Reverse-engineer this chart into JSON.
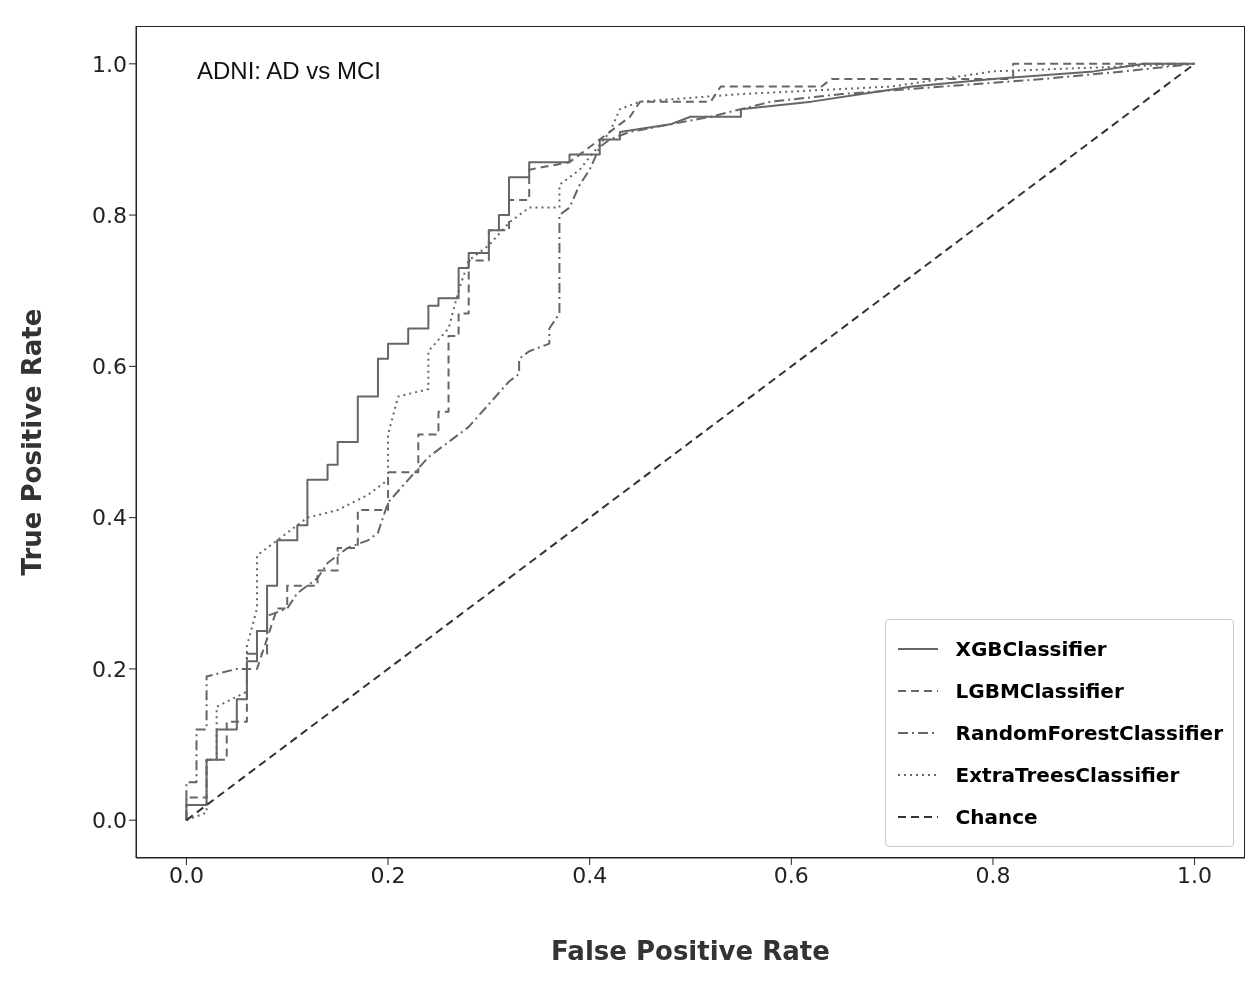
{
  "chart_data": {
    "type": "line",
    "xlabel": "False Positive Rate",
    "ylabel": "True Positive Rate",
    "annotations": [
      "ADNI: AD vs MCI"
    ],
    "xlim": [
      -0.05,
      1.05
    ],
    "ylim": [
      -0.05,
      1.05
    ],
    "xticks": [
      {
        "value": 0,
        "label": "0.0"
      },
      {
        "value": 0.2,
        "label": "0.2"
      },
      {
        "value": 0.4,
        "label": "0.4"
      },
      {
        "value": 0.6,
        "label": "0.6"
      },
      {
        "value": 0.8,
        "label": "0.8"
      },
      {
        "value": 1,
        "label": "1.0"
      }
    ],
    "yticks": [
      {
        "value": 0,
        "label": "0.0"
      },
      {
        "value": 0.2,
        "label": "0.2"
      },
      {
        "value": 0.4,
        "label": "0.4"
      },
      {
        "value": 0.6,
        "label": "0.6"
      },
      {
        "value": 0.8,
        "label": "0.8"
      },
      {
        "value": 1,
        "label": "1.0"
      }
    ],
    "grid": false,
    "legend": "bottom right",
    "marker": "none",
    "series": [
      {
        "name": "XGBClassifier",
        "color": "#666666",
        "line_style": "solid",
        "x": [
          0,
          0,
          0.02,
          0.02,
          0.03,
          0.03,
          0.05,
          0.05,
          0.06,
          0.06,
          0.07,
          0.07,
          0.08,
          0.08,
          0.09,
          0.09,
          0.11,
          0.11,
          0.12,
          0.12,
          0.14,
          0.14,
          0.15,
          0.15,
          0.17,
          0.17,
          0.19,
          0.19,
          0.2,
          0.2,
          0.22,
          0.22,
          0.24,
          0.24,
          0.25,
          0.25,
          0.27,
          0.27,
          0.28,
          0.28,
          0.3,
          0.3,
          0.31,
          0.31,
          0.32,
          0.32,
          0.34,
          0.34,
          0.38,
          0.38,
          0.41,
          0.41,
          0.43,
          0.43,
          0.48,
          0.5,
          0.55,
          0.55,
          0.62,
          0.67,
          0.72,
          0.8,
          0.9,
          0.95,
          1
        ],
        "values": [
          0,
          0.02,
          0.02,
          0.08,
          0.08,
          0.12,
          0.12,
          0.16,
          0.16,
          0.21,
          0.21,
          0.25,
          0.25,
          0.31,
          0.31,
          0.37,
          0.37,
          0.39,
          0.39,
          0.45,
          0.45,
          0.47,
          0.47,
          0.5,
          0.5,
          0.56,
          0.56,
          0.61,
          0.61,
          0.63,
          0.63,
          0.65,
          0.65,
          0.68,
          0.68,
          0.69,
          0.69,
          0.73,
          0.73,
          0.75,
          0.75,
          0.78,
          0.78,
          0.8,
          0.8,
          0.85,
          0.85,
          0.87,
          0.87,
          0.88,
          0.88,
          0.9,
          0.9,
          0.91,
          0.92,
          0.93,
          0.93,
          0.94,
          0.95,
          0.96,
          0.97,
          0.98,
          0.99,
          1,
          1
        ]
      },
      {
        "name": "LGBMClassifier",
        "color": "#666666",
        "line_style": "dashed",
        "x": [
          0,
          0,
          0.02,
          0.02,
          0.04,
          0.04,
          0.06,
          0.06,
          0.07,
          0.08,
          0.09,
          0.1,
          0.1,
          0.13,
          0.13,
          0.15,
          0.15,
          0.17,
          0.17,
          0.2,
          0.2,
          0.23,
          0.23,
          0.25,
          0.25,
          0.26,
          0.26,
          0.27,
          0.27,
          0.28,
          0.28,
          0.3,
          0.3,
          0.32,
          0.32,
          0.34,
          0.34,
          0.38,
          0.4,
          0.42,
          0.44,
          0.45,
          0.52,
          0.53,
          0.63,
          0.64,
          0.82,
          0.82,
          1
        ],
        "values": [
          0,
          0.03,
          0.03,
          0.08,
          0.08,
          0.13,
          0.13,
          0.2,
          0.2,
          0.24,
          0.28,
          0.28,
          0.31,
          0.31,
          0.33,
          0.33,
          0.36,
          0.36,
          0.41,
          0.41,
          0.46,
          0.46,
          0.51,
          0.51,
          0.54,
          0.54,
          0.64,
          0.64,
          0.67,
          0.67,
          0.74,
          0.74,
          0.78,
          0.78,
          0.82,
          0.82,
          0.86,
          0.87,
          0.89,
          0.91,
          0.93,
          0.95,
          0.95,
          0.97,
          0.97,
          0.98,
          0.98,
          1,
          1
        ]
      },
      {
        "name": "RandomForestClassifier",
        "color": "#666666",
        "line_style": "dashdot",
        "x": [
          0,
          0,
          0.01,
          0.01,
          0.02,
          0.02,
          0.05,
          0.06,
          0.06,
          0.08,
          0.08,
          0.1,
          0.11,
          0.13,
          0.14,
          0.16,
          0.18,
          0.19,
          0.2,
          0.22,
          0.24,
          0.26,
          0.28,
          0.3,
          0.32,
          0.33,
          0.33,
          0.34,
          0.36,
          0.36,
          0.37,
          0.37,
          0.38,
          0.39,
          0.4,
          0.41,
          0.42,
          0.44,
          0.52,
          0.58,
          0.65,
          0.75,
          0.85,
          0.93,
          1
        ],
        "values": [
          0,
          0.05,
          0.05,
          0.12,
          0.12,
          0.19,
          0.2,
          0.2,
          0.22,
          0.22,
          0.27,
          0.28,
          0.3,
          0.32,
          0.34,
          0.36,
          0.37,
          0.38,
          0.42,
          0.45,
          0.48,
          0.5,
          0.52,
          0.55,
          0.58,
          0.59,
          0.61,
          0.62,
          0.63,
          0.65,
          0.67,
          0.8,
          0.81,
          0.84,
          0.86,
          0.89,
          0.9,
          0.91,
          0.93,
          0.95,
          0.96,
          0.97,
          0.98,
          0.99,
          1
        ]
      },
      {
        "name": "ExtraTreesClassifier",
        "color": "#666666",
        "line_style": "dotted",
        "x": [
          0,
          0.02,
          0.02,
          0.03,
          0.03,
          0.06,
          0.06,
          0.07,
          0.07,
          0.09,
          0.12,
          0.15,
          0.18,
          0.2,
          0.2,
          0.21,
          0.24,
          0.24,
          0.26,
          0.27,
          0.28,
          0.3,
          0.32,
          0.34,
          0.37,
          0.37,
          0.39,
          0.42,
          0.43,
          0.45,
          0.55,
          0.7,
          0.8,
          1
        ],
        "values": [
          0,
          0.01,
          0.08,
          0.08,
          0.15,
          0.17,
          0.23,
          0.28,
          0.35,
          0.37,
          0.4,
          0.41,
          0.43,
          0.45,
          0.51,
          0.56,
          0.57,
          0.62,
          0.65,
          0.7,
          0.74,
          0.76,
          0.79,
          0.81,
          0.81,
          0.84,
          0.86,
          0.91,
          0.94,
          0.95,
          0.96,
          0.97,
          0.99,
          1
        ]
      },
      {
        "name": "Chance",
        "color": "#333333",
        "line_style": "dashed",
        "x": [
          0,
          1
        ],
        "values": [
          0,
          1
        ]
      }
    ]
  }
}
